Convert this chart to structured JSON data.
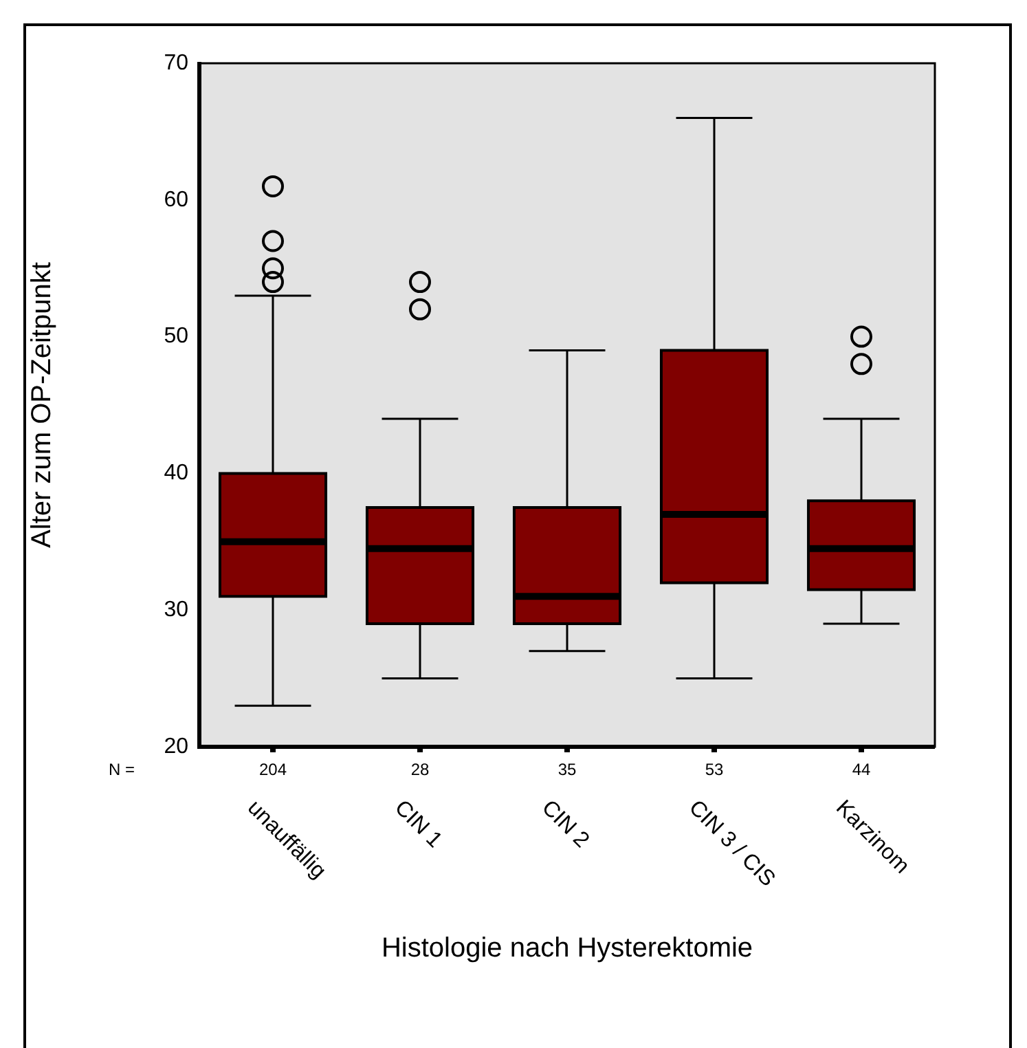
{
  "chart_data": {
    "type": "box",
    "xlabel": "Histologie nach Hysterektomie",
    "ylabel": "Alter zum OP-Zeitpunkt",
    "categories": [
      "unauffällig",
      "CIN 1",
      "CIN 2",
      "CIN 3 / CIS",
      "Karzinom"
    ],
    "color": "#800000",
    "boxes": [
      {
        "low": 23,
        "q1": 31,
        "median": 35,
        "q3": 40,
        "high": 53,
        "outliers": [
          54,
          55,
          57,
          61
        ]
      },
      {
        "low": 25,
        "q1": 29,
        "median": 34.5,
        "q3": 37.5,
        "high": 44,
        "outliers": [
          52,
          54
        ]
      },
      {
        "low": 27,
        "q1": 29,
        "median": 31,
        "q3": 37.5,
        "high": 49
      },
      {
        "low": 25,
        "q1": 32,
        "median": 37,
        "q3": 49,
        "high": 66
      },
      {
        "low": 29,
        "q1": 31.5,
        "median": 34.5,
        "q3": 38,
        "high": 44,
        "outliers": [
          48,
          50
        ]
      }
    ],
    "ylim": [
      20,
      70
    ],
    "yticks": [
      20,
      30,
      40,
      50,
      60,
      70
    ],
    "annotations": [
      "N =",
      "204",
      "28",
      "35",
      "53",
      "44"
    ]
  }
}
